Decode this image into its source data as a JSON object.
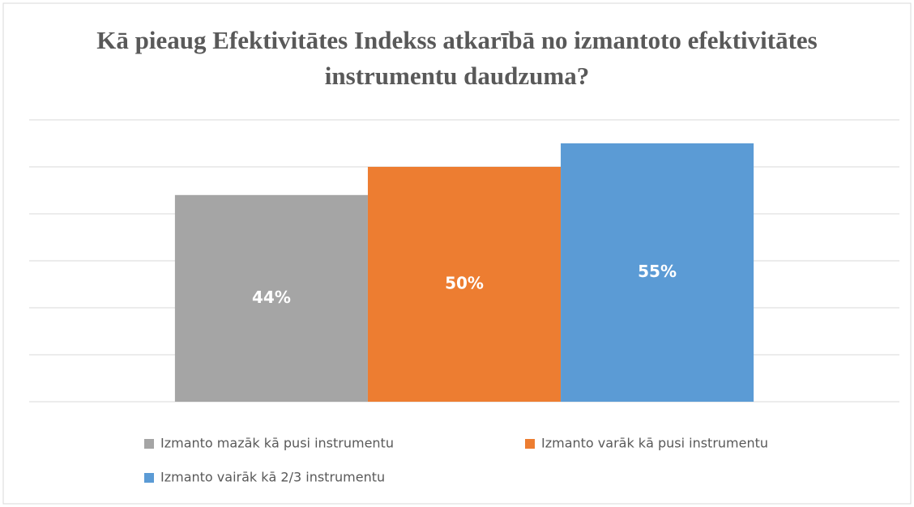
{
  "chart_data": {
    "type": "bar",
    "title": "Kā pieaug Efektivitātes Indekss atkarībā no izmantoto efektivitātes instrumentu daudzuma?",
    "categories": [
      null
    ],
    "series": [
      {
        "name": "Izmanto mazāk kā pusi instrumentu",
        "color": "#a5a5a5",
        "values": [
          44
        ],
        "value_labels": [
          "44%"
        ]
      },
      {
        "name": "Izmanto varāk kā pusi instrumentu",
        "color": "#ed7d31",
        "values": [
          50
        ],
        "value_labels": [
          "50%"
        ]
      },
      {
        "name": "Izmanto vairāk kā 2/3 instrumentu",
        "color": "#5b9bd5",
        "values": [
          55
        ],
        "value_labels": [
          "55%"
        ]
      }
    ],
    "ylim": [
      0,
      60
    ],
    "yticks": [
      0,
      10,
      20,
      30,
      40,
      50,
      60
    ],
    "grid": true,
    "legend": "bottom"
  }
}
